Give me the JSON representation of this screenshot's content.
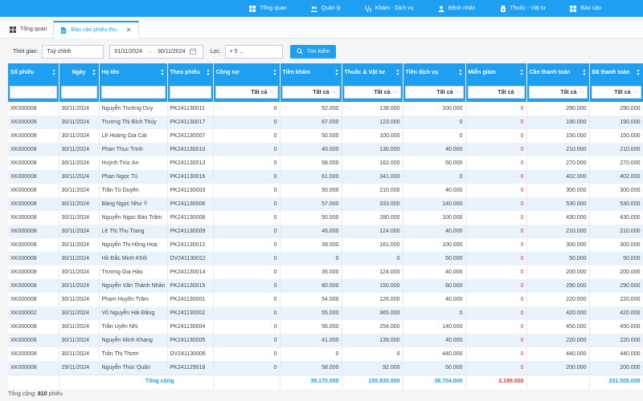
{
  "nav": [
    {
      "label": "Tổng quan",
      "icon": "dashboard-icon"
    },
    {
      "label": "Quản lý",
      "icon": "users-icon"
    },
    {
      "label": "Khám - Dịch vụ",
      "icon": "stethoscope-icon"
    },
    {
      "label": "Bệnh nhân",
      "icon": "patient-icon"
    },
    {
      "label": "Thuốc - Vật tư",
      "icon": "medicine-icon"
    },
    {
      "label": "Báo cáo",
      "icon": "report-icon"
    }
  ],
  "tabs": [
    {
      "label": "Tổng quan"
    },
    {
      "label": "Báo cáo phiếu thu"
    }
  ],
  "filter": {
    "time_label": "Thời gian:",
    "time_value": "Tuỳ chỉnh",
    "date_from": "01/11/2024",
    "date_arrow": "→",
    "date_to": "30/11/2024",
    "loc_label": "Lọc:",
    "loc_value": "+ 5 ...",
    "search_label": "Tìm kiếm"
  },
  "columns": [
    {
      "label": "Số phiếu",
      "filter": ""
    },
    {
      "label": "Ngày",
      "filter": ""
    },
    {
      "label": "Họ tên",
      "filter": ""
    },
    {
      "label": "Theo phiếu",
      "filter": ""
    },
    {
      "label": "Công nợ",
      "filter": "Tất cả"
    },
    {
      "label": "Tiền khám",
      "filter": "Tất cả"
    },
    {
      "label": "Thuốc & Vật tư",
      "filter": "Tất cả"
    },
    {
      "label": "Tiền dịch vụ",
      "filter": "Tất cả"
    },
    {
      "label": "Miễn giảm",
      "filter": "Tất cả"
    },
    {
      "label": "Cần thanh toán",
      "filter": "Tất cả"
    },
    {
      "label": "Đã thanh toán",
      "filter": "Tất cả"
    }
  ],
  "rows": [
    [
      "XK000008",
      "30/11/2024",
      "Nguyễn Trường Duy",
      "PK241130011",
      "0",
      "52.000",
      "138.000",
      "100.000",
      "0",
      "290.000",
      "290.000"
    ],
    [
      "XK000008",
      "30/11/2024",
      "Trương Thị Bích Thủy",
      "PK241130017",
      "0",
      "67.000",
      "123.000",
      "0",
      "0",
      "190.000",
      "190.000"
    ],
    [
      "XK000008",
      "30/11/2024",
      "Lê Hoàng Gia Cát",
      "PK241130007",
      "0",
      "50.000",
      "100.000",
      "0",
      "0",
      "150.000",
      "150.000"
    ],
    [
      "XK000008",
      "30/11/2024",
      "Phan Thục Trinh",
      "PK241130010",
      "0",
      "40.000",
      "130.000",
      "40.000",
      "0",
      "210.000",
      "210.000"
    ],
    [
      "XK000008",
      "30/11/2024",
      "Huỳnh Trúc An",
      "PK241130013",
      "0",
      "58.000",
      "162.000",
      "50.000",
      "0",
      "270.000",
      "270.000"
    ],
    [
      "XK000008",
      "30/11/2024",
      "Phan Ngọc Tú",
      "PK241130016",
      "0",
      "61.000",
      "341.000",
      "0",
      "0",
      "402.000",
      "402.000"
    ],
    [
      "XK000008",
      "30/11/2024",
      "Trần Tú Duyên",
      "PK241130003",
      "0",
      "50.000",
      "210.000",
      "40.000",
      "0",
      "300.000",
      "300.000"
    ],
    [
      "XK000008",
      "30/11/2024",
      "Bàng Ngọc Như Ý",
      "PK241130006",
      "0",
      "57.000",
      "333.000",
      "140.000",
      "0",
      "530.000",
      "530.000"
    ],
    [
      "XK000008",
      "30/11/2024",
      "Nguyễn Ngọc Bảo Trâm",
      "PK241130008",
      "0",
      "50.000",
      "280.000",
      "100.000",
      "0",
      "430.000",
      "430.000"
    ],
    [
      "XK000008",
      "30/11/2024",
      "Lê Thị Thu Trang",
      "PK241130009",
      "0",
      "46.000",
      "124.000",
      "40.000",
      "0",
      "210.000",
      "210.000"
    ],
    [
      "XK000008",
      "30/11/2024",
      "Nguyễn Thị Hồng Hoa",
      "PK241130012",
      "0",
      "39.000",
      "161.000",
      "100.000",
      "0",
      "300.000",
      "300.000"
    ],
    [
      "XK000008",
      "30/11/2024",
      "Hồ Đắc Minh Khôi",
      "DV241130012",
      "0",
      "0",
      "0",
      "50.000",
      "0",
      "50.000",
      "50.000"
    ],
    [
      "XK000008",
      "30/11/2024",
      "Trương Gia Hảo",
      "PK241130014",
      "0",
      "36.000",
      "124.000",
      "40.000",
      "0",
      "200.000",
      "200.000"
    ],
    [
      "XK000008",
      "30/11/2024",
      "Nguyễn Văn Thành Nhân",
      "PK241130015",
      "0",
      "80.000",
      "150.000",
      "60.000",
      "0",
      "290.000",
      "290.000"
    ],
    [
      "XK000008",
      "30/11/2024",
      "Phạm Huyền Trâm",
      "PK241130001",
      "0",
      "54.000",
      "126.000",
      "40.000",
      "0",
      "220.000",
      "220.000"
    ],
    [
      "XK000002",
      "30/11/2024",
      "Võ Nguyễn Hải Đăng",
      "PK241130002",
      "0",
      "55.000",
      "365.000",
      "0",
      "0",
      "420.000",
      "420.000"
    ],
    [
      "XK000008",
      "30/11/2024",
      "Trần Uyên Nhi",
      "PK241130004",
      "0",
      "56.000",
      "254.000",
      "140.000",
      "0",
      "450.000",
      "450.000"
    ],
    [
      "XK000008",
      "30/11/2024",
      "Nguyễn Minh Khang",
      "PK241130005",
      "0",
      "41.000",
      "139.000",
      "40.000",
      "0",
      "220.000",
      "220.000"
    ],
    [
      "XK000008",
      "30/11/2024",
      "Trần Thị Thơm",
      "DV241130006",
      "0",
      "0",
      "0",
      "440.000",
      "0",
      "440.000",
      "440.000"
    ],
    [
      "XK000008",
      "29/11/2024",
      "Nguyễn Thúc Quân",
      "PK241129018",
      "0",
      "58.000",
      "92.000",
      "50.000",
      "0",
      "200.000",
      "200.000"
    ]
  ],
  "totals": {
    "label": "Tổng cộng",
    "tien_kham": "39.170.000",
    "thuoc": "155.830.000",
    "dich_vu": "38.704.000",
    "mien_giam": "2.199.000",
    "da_thanh_toan": "231.505.000"
  },
  "footer": {
    "prefix": "Tổng cộng:",
    "count": "810",
    "suffix": "phiếu"
  },
  "colors": {
    "accent": "#1e9ff2",
    "negative": "#e53935"
  }
}
